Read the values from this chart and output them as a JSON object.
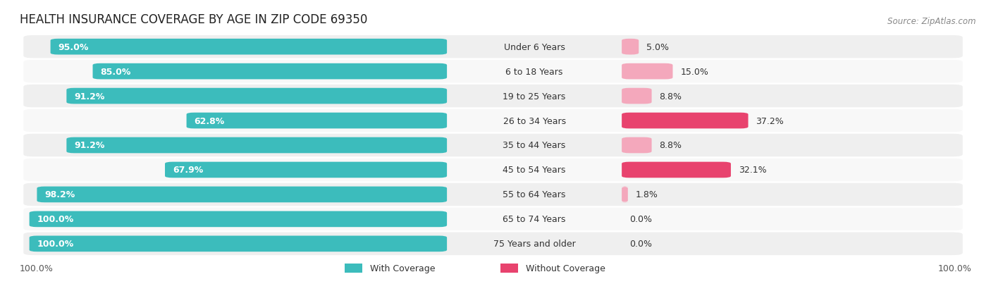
{
  "title": "HEALTH INSURANCE COVERAGE BY AGE IN ZIP CODE 69350",
  "source": "Source: ZipAtlas.com",
  "categories": [
    "Under 6 Years",
    "6 to 18 Years",
    "19 to 25 Years",
    "26 to 34 Years",
    "35 to 44 Years",
    "45 to 54 Years",
    "55 to 64 Years",
    "65 to 74 Years",
    "75 Years and older"
  ],
  "with_coverage": [
    95.0,
    85.0,
    91.2,
    62.8,
    91.2,
    67.9,
    98.2,
    100.0,
    100.0
  ],
  "without_coverage": [
    5.0,
    15.0,
    8.8,
    37.2,
    8.8,
    32.1,
    1.8,
    0.0,
    0.0
  ],
  "color_with": "#3cbcbc",
  "color_without_high": "#e8436e",
  "color_without_low": "#f4a8bc",
  "label_left_pct": "100.0%",
  "label_right_pct": "100.0%",
  "title_fontsize": 12,
  "label_fontsize": 9,
  "tick_fontsize": 9,
  "source_fontsize": 8.5,
  "high_threshold": 20.0
}
